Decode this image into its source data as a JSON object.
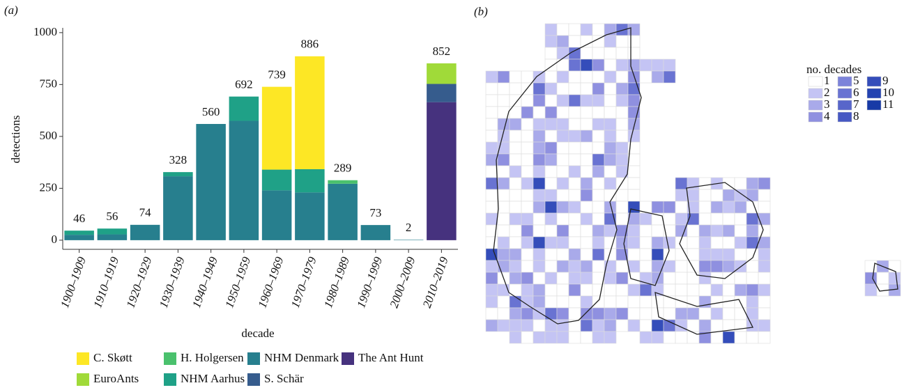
{
  "chart_data": {
    "type": "stacked-bar",
    "panel_label": "(a)",
    "xlabel": "decade",
    "ylabel": "detections",
    "categories": [
      "1900–1909",
      "1910–1919",
      "1920–1929",
      "1930–1939",
      "1940–1949",
      "1950–1959",
      "1960–1969",
      "1970–1979",
      "1980–1989",
      "1990–1999",
      "2000–2009",
      "2010–2019"
    ],
    "series": [
      {
        "name": "C. Skøtt",
        "color": "#fde725",
        "values": [
          0,
          0,
          0,
          0,
          0,
          0,
          399,
          544,
          0,
          0,
          0,
          0
        ]
      },
      {
        "name": "EuroAnts",
        "color": "#a0da39",
        "values": [
          0,
          0,
          0,
          0,
          0,
          0,
          0,
          0,
          0,
          0,
          0,
          99
        ]
      },
      {
        "name": "H. Holgersen",
        "color": "#4ac16d",
        "values": [
          0,
          0,
          0,
          0,
          0,
          0,
          0,
          0,
          17,
          0,
          0,
          0
        ]
      },
      {
        "name": "NHM Aarhus",
        "color": "#1fa187",
        "values": [
          20,
          28,
          0,
          20,
          0,
          117,
          100,
          112,
          0,
          0,
          0,
          0
        ]
      },
      {
        "name": "NHM Denmark",
        "color": "#277f8e",
        "values": [
          26,
          28,
          74,
          308,
          560,
          575,
          240,
          230,
          272,
          73,
          2,
          0
        ]
      },
      {
        "name": "S. Schär",
        "color": "#365c8d",
        "values": [
          0,
          0,
          0,
          0,
          0,
          0,
          0,
          0,
          0,
          0,
          0,
          88
        ]
      },
      {
        "name": "The Ant Hunt",
        "color": "#46327e",
        "values": [
          0,
          0,
          0,
          0,
          0,
          0,
          0,
          0,
          0,
          0,
          0,
          665
        ]
      }
    ],
    "totals": [
      46,
      56,
      74,
      328,
      560,
      692,
      739,
      886,
      289,
      73,
      2,
      852
    ],
    "ylim": [
      -44,
      1023
    ],
    "yticks": [
      0,
      250,
      500,
      750,
      1000
    ]
  },
  "map_panel": {
    "panel_label": "(b)",
    "legend_title": "no. decades",
    "legend": [
      {
        "label": "1",
        "color": "#ffffff"
      },
      {
        "label": "2",
        "color": "#c4c4f4"
      },
      {
        "label": "3",
        "color": "#a9aaea"
      },
      {
        "label": "4",
        "color": "#8f90e0"
      },
      {
        "label": "5",
        "color": "#7c83da"
      },
      {
        "label": "6",
        "color": "#6973d2"
      },
      {
        "label": "7",
        "color": "#5866ca"
      },
      {
        "label": "8",
        "color": "#4758c3"
      },
      {
        "label": "9",
        "color": "#344dba"
      },
      {
        "label": "10",
        "color": "#2443b1"
      },
      {
        "label": "11",
        "color": "#173aa6"
      }
    ]
  }
}
